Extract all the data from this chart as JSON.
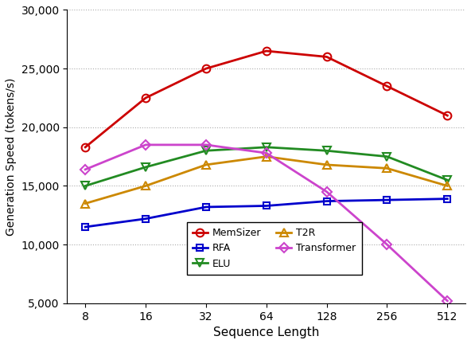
{
  "x_labels": [
    8,
    16,
    32,
    64,
    128,
    256,
    512
  ],
  "x_positions": [
    8,
    16,
    32,
    64,
    128,
    256,
    512
  ],
  "series": {
    "MemSizer": {
      "values": [
        18300,
        22500,
        25000,
        26500,
        26000,
        23500,
        21000
      ],
      "color": "#cc0000",
      "marker": "o",
      "markersize": 7,
      "markeredgewidth": 1.5
    },
    "ELU": {
      "values": [
        15000,
        16600,
        18000,
        18300,
        18000,
        17500,
        15500
      ],
      "color": "#228B22",
      "marker": "v",
      "markersize": 7,
      "markeredgewidth": 1.5
    },
    "Transformer": {
      "values": [
        16400,
        18500,
        18500,
        17800,
        14500,
        10000,
        5200
      ],
      "color": "#cc44cc",
      "marker": "D",
      "markersize": 6,
      "markeredgewidth": 1.5
    },
    "RFA": {
      "values": [
        11500,
        12200,
        13200,
        13300,
        13700,
        13800,
        13900
      ],
      "color": "#0000cc",
      "marker": "s",
      "markersize": 6,
      "markeredgewidth": 1.5
    },
    "T2R": {
      "values": [
        13500,
        15000,
        16800,
        17500,
        16800,
        16500,
        15000
      ],
      "color": "#cc8800",
      "marker": "^",
      "markersize": 7,
      "markeredgewidth": 1.5
    }
  },
  "title": "",
  "xlabel": "Sequence Length",
  "ylabel": "Generation Speed (tokens/s)",
  "ylim": [
    5000,
    30000
  ],
  "yticks": [
    5000,
    10000,
    15000,
    20000,
    25000,
    30000
  ],
  "linewidth": 2.0,
  "background_color": "#ffffff",
  "grid_color": "#aaaaaa",
  "legend_order": [
    "MemSizer",
    "RFA",
    "ELU",
    "T2R",
    "Transformer"
  ],
  "legend_ncol": 2
}
